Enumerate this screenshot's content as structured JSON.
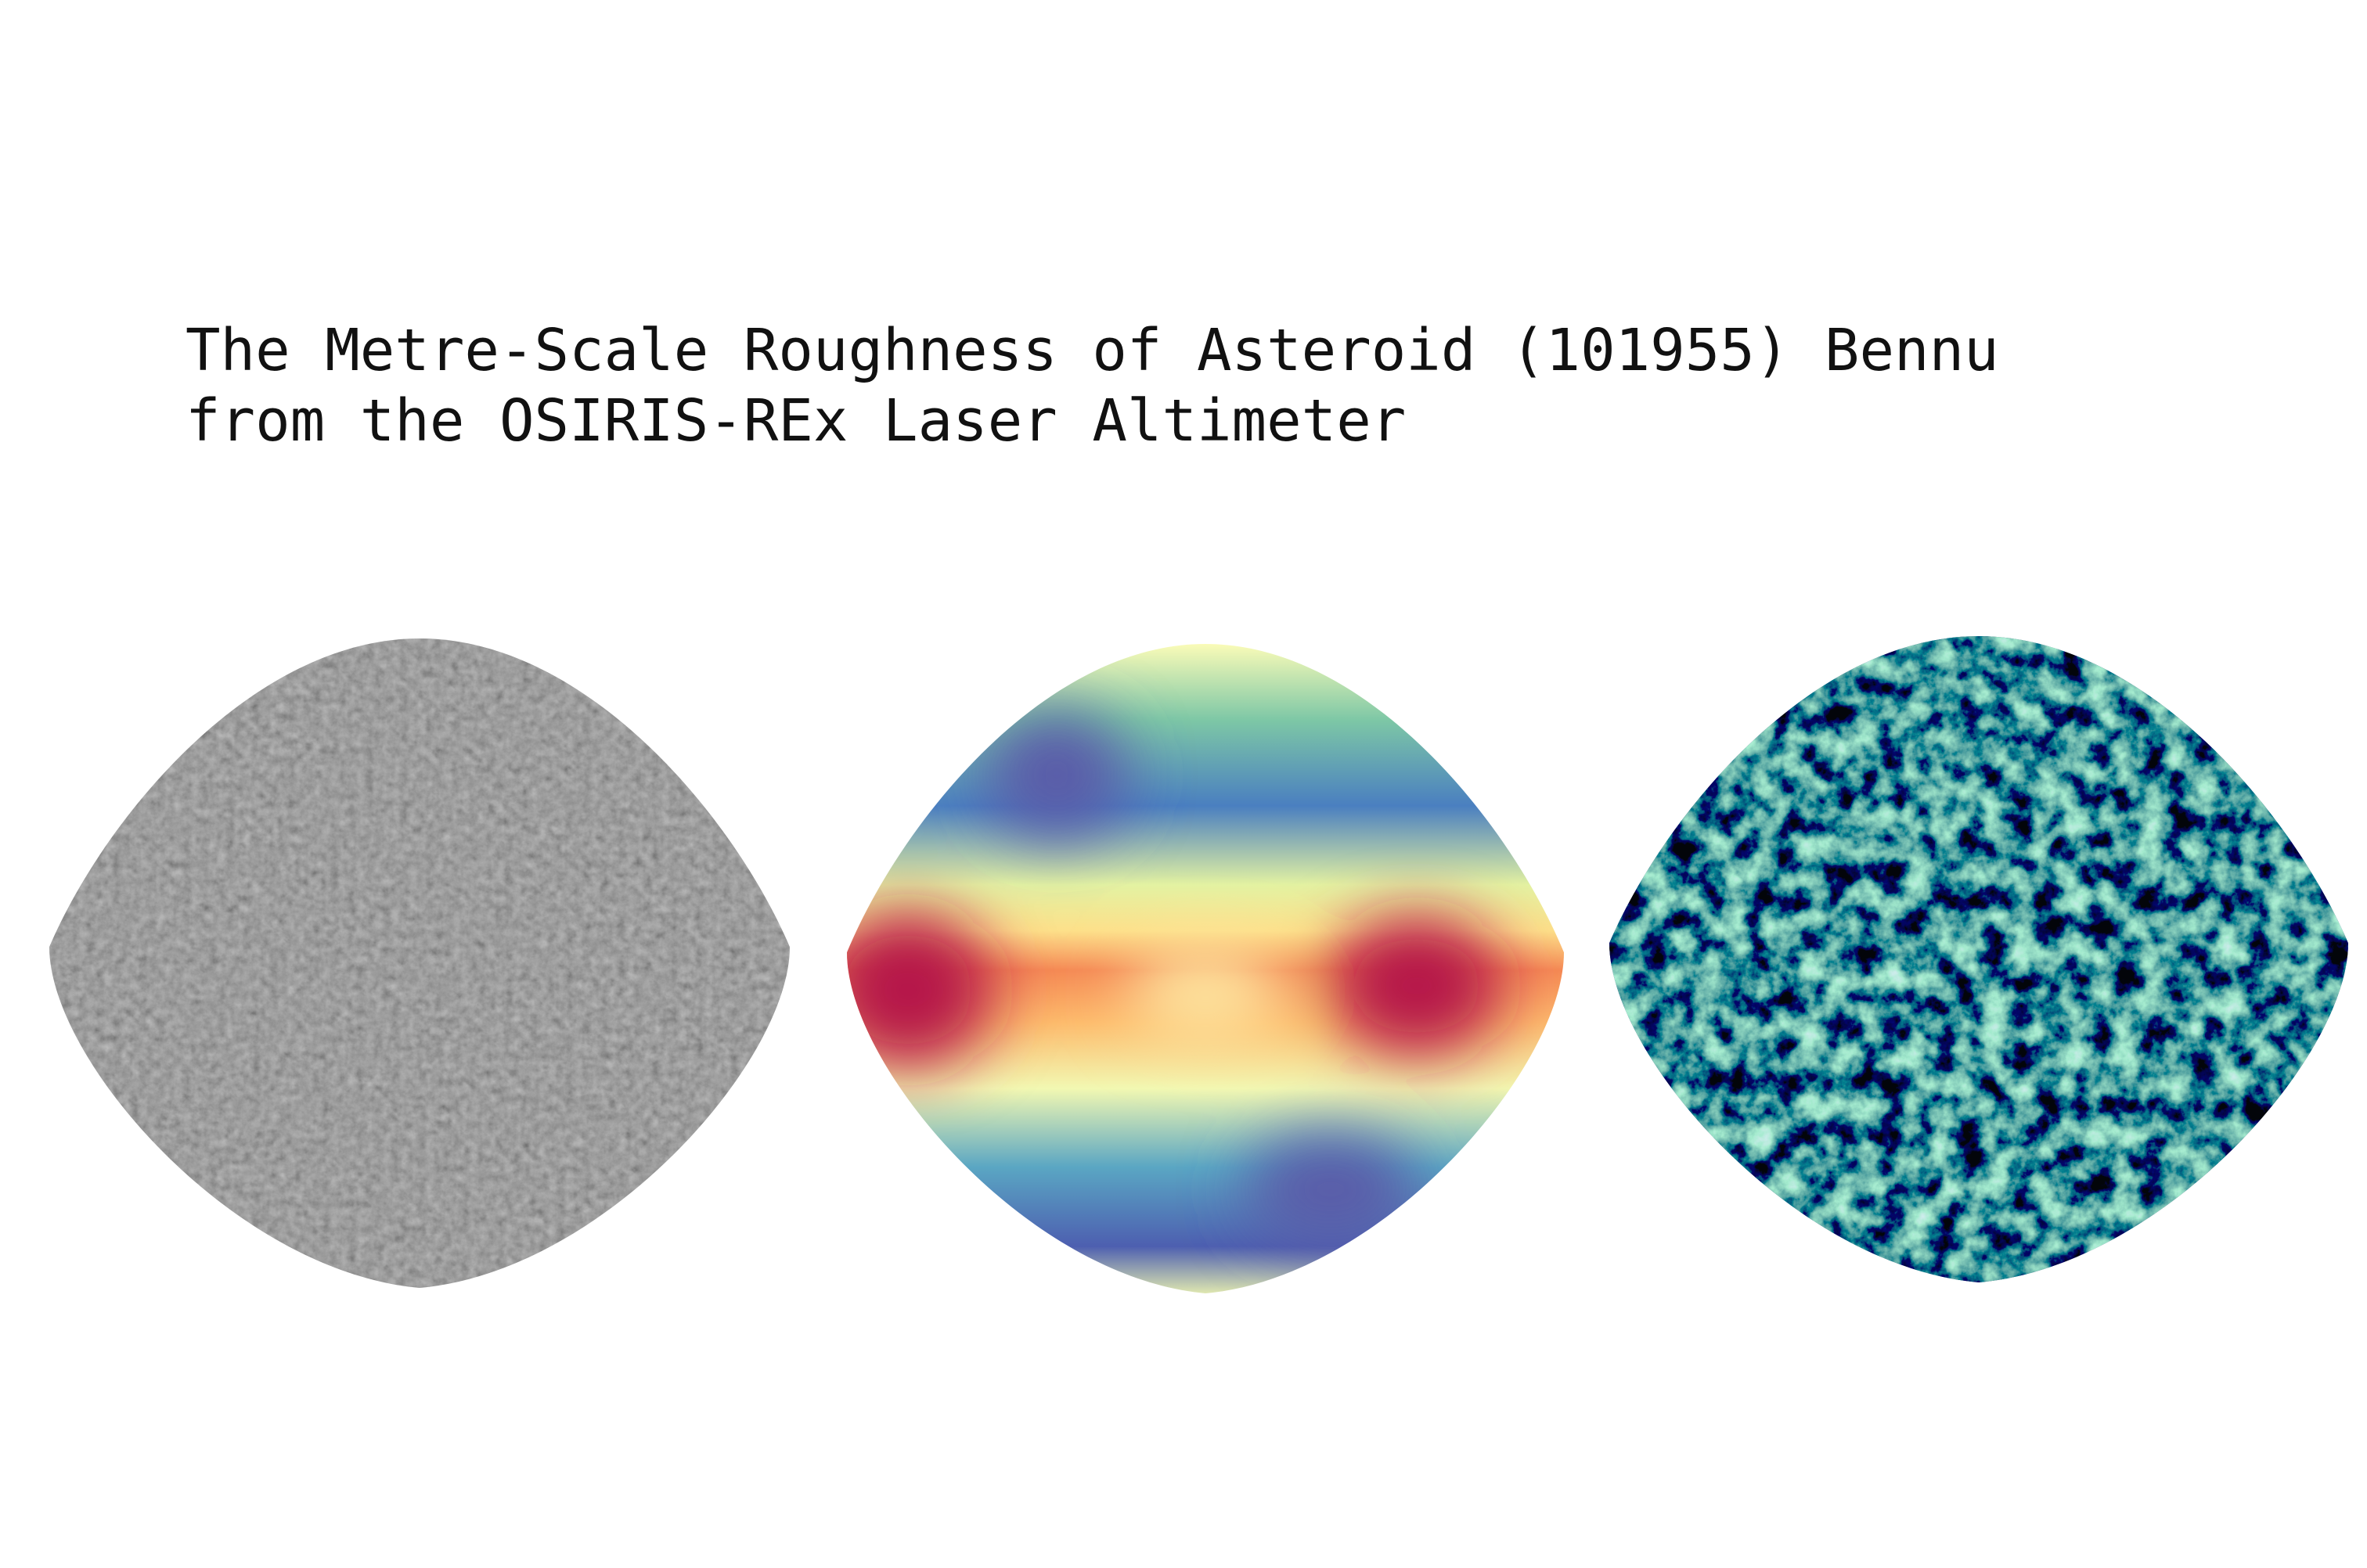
{
  "title": {
    "lines": [
      "The Metre-Scale Roughness of Asteroid (101955) Bennu",
      "from the OSIRIS-REx Laser Altimeter"
    ]
  }
}
